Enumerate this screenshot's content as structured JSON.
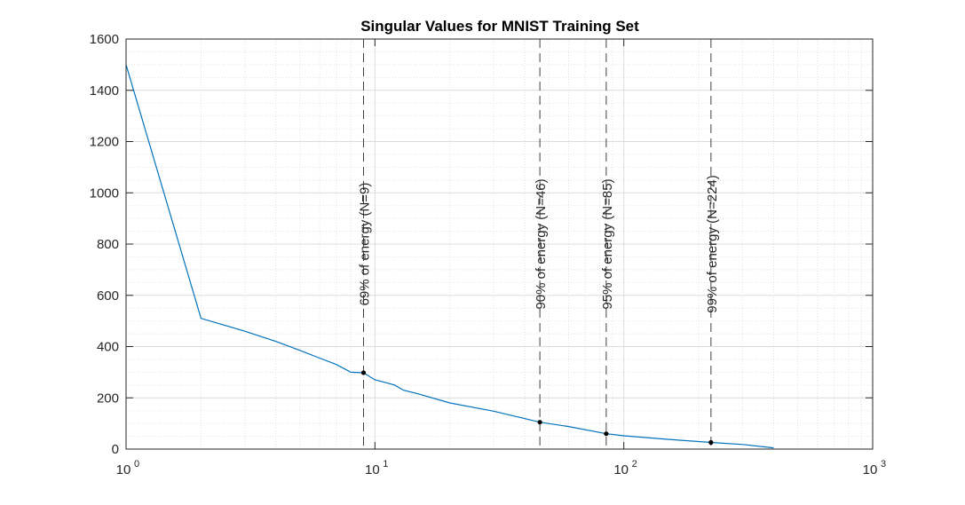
{
  "chart_data": {
    "type": "line",
    "title": "Singular Values for MNIST Training Set",
    "xlabel": "",
    "ylabel": "",
    "xscale": "log",
    "xlim": [
      1,
      1000
    ],
    "ylim": [
      0,
      1600
    ],
    "grid": true,
    "minor_grid": true,
    "x_ticks": [
      {
        "base": "10",
        "exp": "0",
        "value": 1
      },
      {
        "base": "10",
        "exp": "1",
        "value": 10
      },
      {
        "base": "10",
        "exp": "2",
        "value": 100
      },
      {
        "base": "10",
        "exp": "3",
        "value": 1000
      }
    ],
    "y_ticks": [
      {
        "label": "0",
        "value": 0
      },
      {
        "label": "200",
        "value": 200
      },
      {
        "label": "400",
        "value": 400
      },
      {
        "label": "600",
        "value": 600
      },
      {
        "label": "800",
        "value": 800
      },
      {
        "label": "1000",
        "value": 1000
      },
      {
        "label": "1200",
        "value": 1200
      },
      {
        "label": "1400",
        "value": 1400
      },
      {
        "label": "1600",
        "value": 1600
      }
    ],
    "series": [
      {
        "color": "#0072BD",
        "x": [
          1,
          2,
          3,
          4,
          5,
          6,
          7,
          8,
          9,
          10,
          11,
          12,
          13,
          15,
          20,
          30,
          46,
          60,
          85,
          100,
          150,
          224,
          300,
          400
        ],
        "y": [
          1500,
          510,
          460,
          420,
          385,
          355,
          330,
          300,
          298,
          270,
          260,
          250,
          230,
          215,
          180,
          148,
          105,
          88,
          60,
          52,
          38,
          26,
          18,
          5
        ]
      }
    ],
    "markers": [
      {
        "x": 9,
        "y": 298
      },
      {
        "x": 46,
        "y": 105
      },
      {
        "x": 85,
        "y": 60
      },
      {
        "x": 224,
        "y": 26
      }
    ],
    "vlines": [
      {
        "x": 9,
        "label": "69% of energy (N=9)"
      },
      {
        "x": 46,
        "label": "90% of energy (N=46)"
      },
      {
        "x": 85,
        "label": "95% of energy (N=85)"
      },
      {
        "x": 224,
        "label": "99% of energy (N=224)"
      }
    ]
  }
}
